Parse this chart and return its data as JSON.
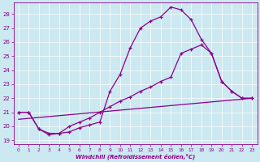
{
  "xlabel": "Windchill (Refroidissement éolien,°C)",
  "bg_color": "#cce8f0",
  "line_color": "#8b008b",
  "grid_color": "#aaaacc",
  "xlim": [
    -0.5,
    23.5
  ],
  "ylim": [
    18.7,
    28.8
  ],
  "yticks": [
    19,
    20,
    21,
    22,
    23,
    24,
    25,
    26,
    27,
    28
  ],
  "xticks": [
    0,
    1,
    2,
    3,
    4,
    5,
    6,
    7,
    8,
    9,
    10,
    11,
    12,
    13,
    14,
    15,
    16,
    17,
    18,
    19,
    20,
    21,
    22,
    23
  ],
  "line1_x": [
    0,
    1,
    2,
    3,
    4,
    5,
    6,
    7,
    8,
    9,
    10,
    11,
    12,
    13,
    14,
    15,
    16,
    17,
    18,
    19,
    20,
    21,
    22,
    23
  ],
  "line1_y": [
    21.0,
    21.0,
    19.8,
    19.4,
    19.5,
    19.6,
    19.9,
    20.1,
    20.3,
    22.5,
    23.7,
    25.6,
    27.0,
    27.5,
    27.8,
    28.5,
    28.3,
    27.6,
    26.2,
    25.2,
    23.2,
    22.5,
    22.0,
    22.0
  ],
  "line2_x": [
    0,
    1,
    2,
    3,
    4,
    5,
    6,
    7,
    8,
    9,
    10,
    11,
    12,
    13,
    14,
    15,
    16,
    17,
    18,
    19,
    20,
    21,
    22,
    23
  ],
  "line2_y": [
    21.0,
    21.0,
    19.8,
    19.5,
    19.5,
    20.0,
    20.3,
    20.6,
    21.0,
    21.4,
    21.8,
    22.1,
    22.5,
    22.8,
    23.2,
    23.5,
    25.2,
    25.5,
    25.8,
    25.2,
    23.2,
    22.5,
    22.0,
    22.0
  ],
  "line3_x": [
    0,
    23
  ],
  "line3_y": [
    20.5,
    22.0
  ]
}
